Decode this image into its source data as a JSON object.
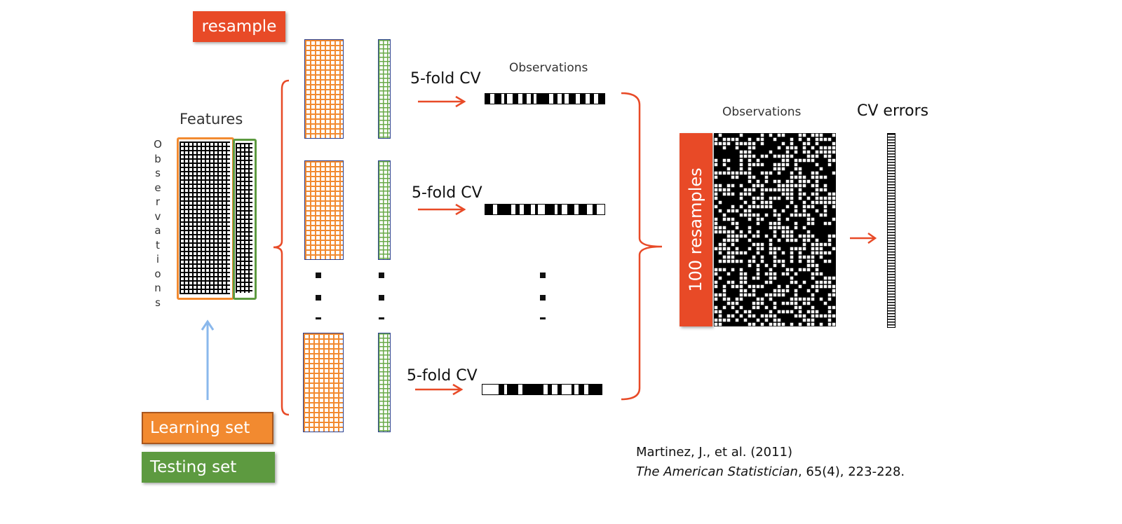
{
  "resample_label": "resample",
  "features_label": "Features",
  "observations_vertical": [
    "O",
    "b",
    "s",
    "e",
    "r",
    "v",
    "a",
    "t",
    "i",
    "o",
    "n",
    "s"
  ],
  "learning_set_label": "Learning set",
  "testing_set_label": "Testing set",
  "cv_label": "5-fold CV",
  "observations_label": "Observations",
  "observations_label_2": "Observations",
  "resamples_label": "100 resamples",
  "cv_errors_label": "CV errors",
  "citation": {
    "line1": "Martinez, J., et al. (2011)",
    "journal": "The American Statistician",
    "rest": ", 65(4), 223-228."
  },
  "colors": {
    "orange": "#f28a30",
    "green": "#5d9a40",
    "red": "#e84a27",
    "arrow_blue": "#8ab8ec"
  }
}
